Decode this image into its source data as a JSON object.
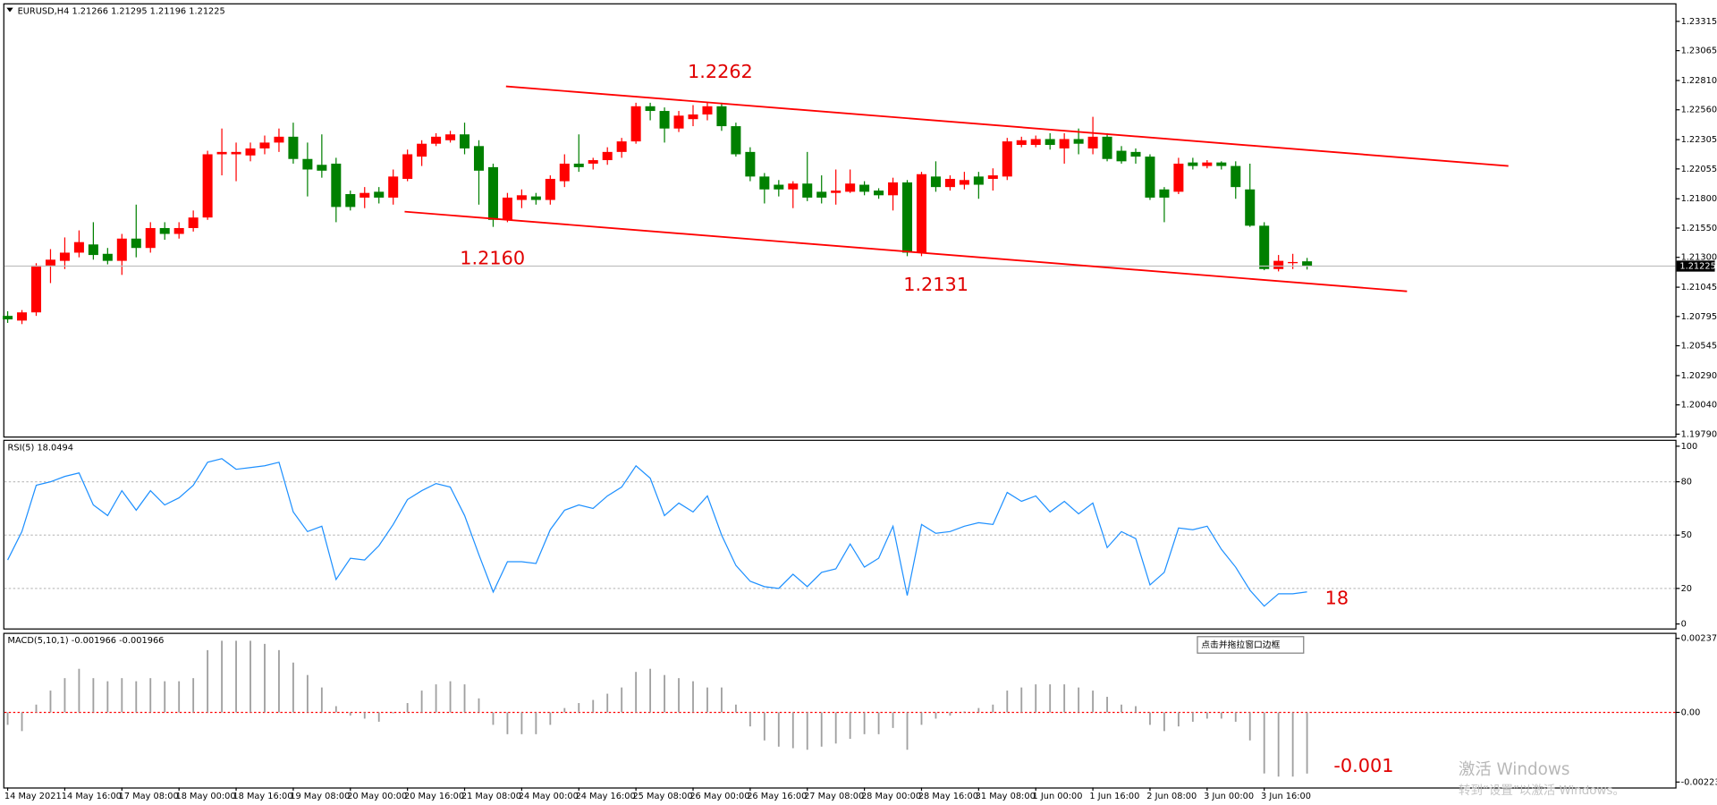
{
  "chart_data": [
    {
      "type": "candlestick",
      "title": "EURUSD,H4  1.21266 1.21295 1.21196 1.21225",
      "categories": [
        "14 May 2021",
        null,
        null,
        null,
        "14 May 16:00",
        null,
        null,
        null,
        "17 May 08:00",
        null,
        null,
        null,
        "18 May 00:00",
        null,
        null,
        null,
        "18 May 16:00",
        null,
        null,
        null,
        "19 May 08:00",
        null,
        null,
        null,
        "20 May 00:00",
        null,
        null,
        null,
        "20 May 16:00",
        null,
        null,
        null,
        "21 May 08:00",
        null,
        null,
        null,
        "24 May 00:00",
        null,
        null,
        null,
        "24 May 16:00",
        null,
        null,
        null,
        "25 May 08:00",
        null,
        null,
        null,
        "26 May 00:00",
        null,
        null,
        null,
        "26 May 16:00",
        null,
        null,
        null,
        "27 May 08:00",
        null,
        null,
        null,
        "28 May 00:00",
        null,
        null,
        null,
        "28 May 16:00",
        null,
        null,
        null,
        "31 May 08:00",
        null,
        null,
        null,
        "1 Jun 00:00",
        null,
        null,
        null,
        "1 Jun 16:00",
        null,
        null,
        null,
        "2 Jun 08:00",
        null,
        null,
        null,
        "3 Jun 00:00",
        null,
        null,
        null,
        "3 Jun 16:00",
        null,
        null,
        null
      ],
      "open": [
        1.208,
        1.2076,
        1.2083,
        1.2123,
        1.2127,
        1.2134,
        1.2141,
        1.2133,
        1.2127,
        1.2146,
        1.2138,
        1.2155,
        1.215,
        1.2155,
        1.2164,
        1.2218,
        1.2218,
        1.2217,
        1.2223,
        1.2228,
        1.2233,
        1.2214,
        1.2209,
        1.221,
        1.2184,
        1.2181,
        1.2186,
        1.2181,
        1.2197,
        1.2216,
        1.2227,
        1.223,
        1.2235,
        1.2225,
        1.2207,
        1.2162,
        1.2179,
        1.2182,
        1.2179,
        1.2195,
        1.221,
        1.221,
        1.2213,
        1.222,
        1.2229,
        1.2259,
        1.2255,
        1.224,
        1.2248,
        1.2252,
        1.2259,
        1.2242,
        1.222,
        1.2199,
        1.2192,
        1.2188,
        1.2193,
        1.2186,
        1.2185,
        1.2186,
        1.2192,
        1.2187,
        1.2183,
        1.2194,
        1.2134,
        1.2199,
        1.219,
        1.2192,
        1.2199,
        1.2197,
        1.2199,
        1.2226,
        1.2226,
        1.2231,
        1.2223,
        1.2231,
        1.2223,
        1.2233,
        1.2221,
        1.222,
        1.2216,
        1.2188,
        1.2186,
        1.2211,
        1.2208,
        1.2211,
        1.2208,
        1.2188,
        1.2157,
        1.212,
        1.2125,
        1.21266
      ],
      "high": [
        1.2084,
        1.2085,
        1.2125,
        1.2137,
        1.2147,
        1.2153,
        1.216,
        1.2138,
        1.215,
        1.2175,
        1.216,
        1.216,
        1.216,
        1.217,
        1.2221,
        1.224,
        1.2228,
        1.2228,
        1.2234,
        1.224,
        1.2245,
        1.2228,
        1.2235,
        1.2215,
        1.2187,
        1.219,
        1.219,
        1.2205,
        1.2222,
        1.223,
        1.2236,
        1.2238,
        1.2245,
        1.223,
        1.221,
        1.2185,
        1.2188,
        1.2185,
        1.22,
        1.2218,
        1.2235,
        1.2215,
        1.2224,
        1.2232,
        1.2262,
        1.2262,
        1.2258,
        1.2255,
        1.226,
        1.2262,
        1.2262,
        1.2245,
        1.2224,
        1.2202,
        1.2196,
        1.2195,
        1.222,
        1.22,
        1.2205,
        1.2205,
        1.2195,
        1.2189,
        1.2198,
        1.2196,
        1.2203,
        1.2212,
        1.22,
        1.2203,
        1.2203,
        1.2206,
        1.2232,
        1.2233,
        1.2234,
        1.2236,
        1.2236,
        1.224,
        1.225,
        1.2236,
        1.2225,
        1.2223,
        1.2218,
        1.219,
        1.2215,
        1.2215,
        1.2213,
        1.2212,
        1.2212,
        1.221,
        1.216,
        1.2132,
        1.2133,
        1.21295
      ],
      "low": [
        1.2074,
        1.2073,
        1.208,
        1.2108,
        1.212,
        1.213,
        1.2128,
        1.2124,
        1.2115,
        1.213,
        1.2134,
        1.2145,
        1.2146,
        1.2152,
        1.2162,
        1.22,
        1.2195,
        1.2212,
        1.2218,
        1.222,
        1.221,
        1.2182,
        1.2198,
        1.216,
        1.217,
        1.2172,
        1.2176,
        1.2175,
        1.2195,
        1.2208,
        1.2225,
        1.2228,
        1.2218,
        1.2175,
        1.2156,
        1.216,
        1.2172,
        1.2175,
        1.2175,
        1.219,
        1.2203,
        1.2205,
        1.2209,
        1.2215,
        1.2227,
        1.2247,
        1.2228,
        1.2237,
        1.2242,
        1.2247,
        1.2238,
        1.2216,
        1.2195,
        1.2176,
        1.2182,
        1.2172,
        1.2178,
        1.2176,
        1.2175,
        1.2185,
        1.2183,
        1.218,
        1.217,
        1.2131,
        1.2131,
        1.2186,
        1.2187,
        1.2188,
        1.218,
        1.2187,
        1.2196,
        1.2224,
        1.2224,
        1.2222,
        1.221,
        1.2218,
        1.2218,
        1.2212,
        1.221,
        1.221,
        1.2179,
        1.216,
        1.2184,
        1.2205,
        1.2206,
        1.2205,
        1.218,
        1.2156,
        1.2119,
        1.2118,
        1.212,
        1.21196
      ],
      "close": [
        1.2077,
        1.2083,
        1.2123,
        1.2128,
        1.2134,
        1.2143,
        1.2132,
        1.2127,
        1.2146,
        1.2138,
        1.2155,
        1.215,
        1.2155,
        1.2164,
        1.2218,
        1.222,
        1.222,
        1.2223,
        1.2228,
        1.2233,
        1.2214,
        1.2205,
        1.2204,
        1.2173,
        1.2173,
        1.2185,
        1.2181,
        1.2199,
        1.2218,
        1.2227,
        1.2233,
        1.2235,
        1.2223,
        1.2204,
        1.2162,
        1.2181,
        1.2183,
        1.2179,
        1.2197,
        1.221,
        1.2207,
        1.2213,
        1.222,
        1.2229,
        1.2259,
        1.2255,
        1.224,
        1.2251,
        1.2252,
        1.2259,
        1.2242,
        1.2218,
        1.2199,
        1.2188,
        1.2188,
        1.2193,
        1.2181,
        1.2181,
        1.2187,
        1.2193,
        1.2186,
        1.2183,
        1.2194,
        1.2134,
        1.2201,
        1.219,
        1.2197,
        1.2196,
        1.2192,
        1.22,
        1.2229,
        1.223,
        1.2231,
        1.2226,
        1.2231,
        1.2227,
        1.2233,
        1.2214,
        1.2212,
        1.2216,
        1.2181,
        1.2181,
        1.221,
        1.2208,
        1.2211,
        1.2208,
        1.219,
        1.2157,
        1.212,
        1.2127,
        1.2126,
        1.21225
      ],
      "up_color": "#ff0000",
      "down_color": "#008000",
      "ylim": [
        1.1977,
        1.2346
      ],
      "yticks": [
        1.23315,
        1.23065,
        {
          "value": 1.2281,
          "label": "1.22810"
        },
        {
          "value": 1.2256,
          "label": "1.22560"
        },
        1.22305,
        1.22055,
        {
          "value": 1.218,
          "label": "1.21800"
        },
        {
          "value": 1.2155,
          "label": "1.21550"
        },
        {
          "value": 1.213,
          "label": "1.21300"
        },
        1.21045,
        1.20795,
        1.20545,
        {
          "value": 1.2029,
          "label": "1.20290"
        },
        {
          "value": 1.2004,
          "label": "1.20040"
        },
        {
          "value": 1.1979,
          "label": "1.19790"
        }
      ],
      "last_price": 1.21225,
      "trendlines": [
        {
          "x": [
            34.9,
            105.1
          ],
          "y": [
            1.2276,
            1.2208
          ]
        },
        {
          "x": [
            27.8,
            98.0
          ],
          "y": [
            1.2169,
            1.2101
          ]
        }
      ],
      "trendline_color": "#ff0000",
      "annotations": [
        "1.2262",
        "1.2160",
        "1.2131"
      ]
    },
    {
      "type": "line",
      "title": "RSI(5) 18.0494",
      "values": [
        36,
        52,
        78,
        80,
        83,
        85,
        67,
        61,
        75,
        64,
        75,
        67,
        71,
        78,
        91,
        93,
        87,
        88,
        89,
        91,
        63,
        52,
        55,
        25,
        37,
        36,
        44,
        56,
        70,
        75,
        79,
        77,
        61,
        39,
        18,
        35,
        35,
        34,
        53,
        64,
        67,
        65,
        72,
        77,
        89,
        82,
        61,
        68,
        63,
        72,
        50,
        33,
        24,
        21,
        20,
        28,
        21,
        29,
        31,
        45,
        32,
        37,
        55,
        16,
        56,
        51,
        52,
        55,
        57,
        56,
        74,
        69,
        72,
        63,
        69,
        62,
        68,
        43,
        52,
        48,
        22,
        29,
        54,
        53,
        55,
        42,
        32,
        19,
        10,
        17,
        17,
        18.0494
      ],
      "color": "#1e90ff",
      "ylim": [
        -2.5,
        103
      ],
      "yticks": [
        100,
        80,
        50,
        20,
        0
      ],
      "levels": [
        80,
        50,
        20
      ],
      "annotations": [
        "18"
      ]
    },
    {
      "type": "bar",
      "title": "MACD(5,10,1) -0.001966 -0.001966",
      "values": [
        -0.0004,
        -0.0006,
        0.00025,
        0.0007,
        0.0011,
        0.0014,
        0.0011,
        0.001,
        0.0011,
        0.001,
        0.0011,
        0.001,
        0.001,
        0.0011,
        0.002,
        0.0023,
        0.0023,
        0.0023,
        0.0022,
        0.002,
        0.0016,
        0.0012,
        0.0008,
        0.0002,
        -0.0001,
        -0.0002,
        -0.0003,
        -3e-05,
        0.0003,
        0.0007,
        0.0009,
        0.001,
        0.0009,
        0.00045,
        -0.0004,
        -0.0007,
        -0.0007,
        -0.0007,
        -0.0004,
        0.00014,
        0.0003,
        0.0004,
        0.0006,
        0.0008,
        0.0013,
        0.0014,
        0.0012,
        0.0011,
        0.001,
        0.0008,
        0.0008,
        0.00025,
        -0.00045,
        -0.0009,
        -0.0011,
        -0.00115,
        -0.0012,
        -0.0011,
        -0.001,
        -0.00085,
        -0.0007,
        -0.0007,
        -0.0005,
        -0.0012,
        -0.0004,
        -0.0002,
        -0.0001,
        3e-05,
        0.00014,
        0.00025,
        0.0007,
        0.0008,
        0.0009,
        0.0009,
        0.0009,
        0.0008,
        0.0007,
        0.0005,
        0.00025,
        0.0002,
        -0.0004,
        -0.0006,
        -0.00045,
        -0.0003,
        -0.0002,
        -0.0002,
        -0.0003,
        -0.0009,
        -0.00196,
        -0.00206,
        -0.00206,
        -0.001966
      ],
      "color": "#a0a0a0",
      "signal_color": "#ff0000",
      "ylim": [
        -0.00241,
        0.00252
      ],
      "yticks": [
        0.002376,
        {
          "value": 0,
          "label": "0.00"
        },
        -0.002237
      ],
      "annotations": [
        "-0.001"
      ]
    }
  ],
  "tooltip": "点击并拖拉窗口边框",
  "watermark": [
    "激活 Windows",
    "转到“设置”以激活 Windows。"
  ]
}
